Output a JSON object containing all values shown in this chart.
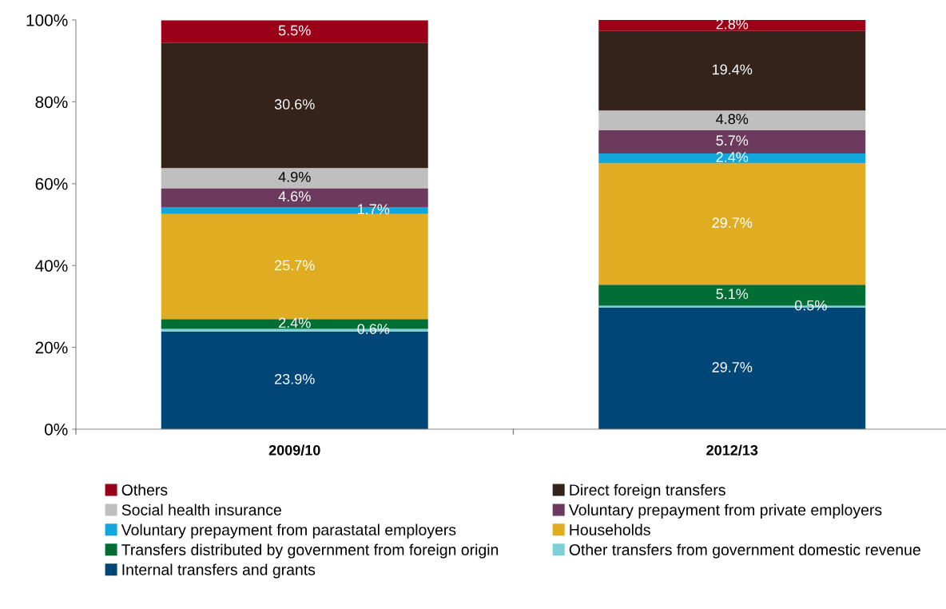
{
  "chart_data": {
    "type": "bar",
    "stacked": true,
    "legend": "bottom",
    "grid": false,
    "categories": [
      "2009/10",
      "2012/13"
    ],
    "ylim": [
      0,
      100
    ],
    "yticks": [
      {
        "value": 0,
        "label": "0%"
      },
      {
        "value": 20,
        "label": "20%"
      },
      {
        "value": 40,
        "label": "40%"
      },
      {
        "value": 60,
        "label": "60%"
      },
      {
        "value": 80,
        "label": "80%"
      },
      {
        "value": 100,
        "label": "100%"
      }
    ],
    "series": [
      {
        "name": "Internal transfers and grants",
        "color": "#004677",
        "values": [
          23.9,
          29.7
        ],
        "value_labels": [
          "23.9%",
          "29.7%"
        ]
      },
      {
        "name": "Other transfers from government domestic revenue",
        "color": "#7fcfd9",
        "values": [
          0.6,
          0.5
        ],
        "value_labels": [
          "0.6%",
          "0.5%"
        ]
      },
      {
        "name": "Transfers distributed by government from foreign origin",
        "color": "#006e35",
        "values": [
          2.4,
          5.1
        ],
        "value_labels": [
          "2.4%",
          "5.1%"
        ]
      },
      {
        "name": "Households",
        "color": "#e0ad22",
        "values": [
          25.7,
          29.7
        ],
        "value_labels": [
          "25.7%",
          "29.7%"
        ]
      },
      {
        "name": "Voluntary prepayment from parastatal employers",
        "color": "#13a6dc",
        "values": [
          1.7,
          2.4
        ],
        "value_labels": [
          "1.7%",
          "2.4%"
        ]
      },
      {
        "name": "Voluntary prepayment from private employers",
        "color": "#6b3a5c",
        "values": [
          4.6,
          5.7
        ],
        "value_labels": [
          "4.6%",
          "5.7%"
        ]
      },
      {
        "name": "Social health insurance",
        "color": "#bfbfbf",
        "values": [
          4.9,
          4.8
        ],
        "value_labels": [
          "4.9%",
          "4.8%"
        ]
      },
      {
        "name": "Direct foreign transfers",
        "color": "#33231a",
        "values": [
          30.6,
          19.4
        ],
        "value_labels": [
          "30.6%",
          "19.4%"
        ]
      },
      {
        "name": "Others",
        "color": "#9a0018",
        "values": [
          5.5,
          2.8
        ],
        "value_labels": [
          "5.5%",
          "2.8%"
        ]
      }
    ]
  }
}
